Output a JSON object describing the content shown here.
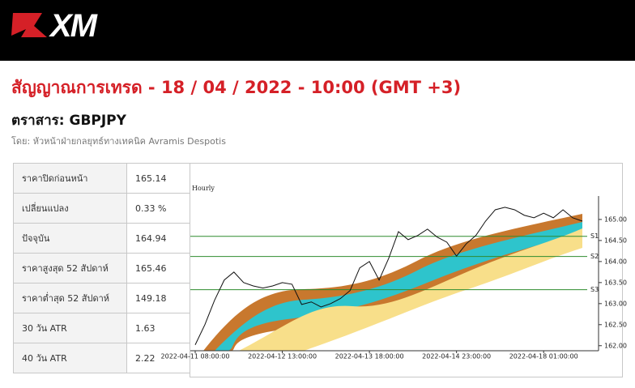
{
  "header": {
    "logo": "XM"
  },
  "title": "สัญญาณการเทรด - 18 / 04 / 2022 - 10:00 (GMT +3)",
  "instrument": "ตราสาร: GBPJPY",
  "author": "โดย: หัวหน้าฝ่ายกลยุทธ์ทางเทคนิค Avramis Despotis",
  "table": {
    "rows": [
      [
        "ราคาปิดก่อนหน้า",
        "165.14"
      ],
      [
        "เปลี่ยนแปลง",
        "0.33 %"
      ],
      [
        "ปัจจุบัน",
        "164.94"
      ],
      [
        "ราคาสูงสุด 52 สัปดาห์",
        "165.46"
      ],
      [
        "ราคาต่ำสุด 52 สัปดาห์",
        "149.18"
      ],
      [
        "30 วัน ATR",
        "1.63"
      ],
      [
        "40 วัน ATR",
        "2.22"
      ]
    ]
  },
  "chart_data": {
    "type": "line",
    "title": "Hourly",
    "categories": [
      "2022-04-11 08:00:00",
      null,
      null,
      null,
      null,
      null,
      null,
      null,
      null,
      "2022-04-12 13:00:00",
      null,
      null,
      null,
      null,
      null,
      null,
      null,
      null,
      "2022-04-13 18:00:00",
      null,
      null,
      null,
      null,
      null,
      null,
      null,
      null,
      "2022-04-14 23:00:00",
      null,
      null,
      null,
      null,
      null,
      null,
      null,
      null,
      "2022-04-18 01:00:00",
      null,
      null,
      null,
      null
    ],
    "series": [
      {
        "color": "#111111",
        "values": [
          162.02,
          162.5,
          163.08,
          163.56,
          163.75,
          163.5,
          163.42,
          163.37,
          163.42,
          163.5,
          163.46,
          162.98,
          163.04,
          162.92,
          163.0,
          163.12,
          163.31,
          163.85,
          164.0,
          163.56,
          164.08,
          164.71,
          164.52,
          164.62,
          164.77,
          164.58,
          164.46,
          164.13,
          164.42,
          164.62,
          164.96,
          165.23,
          165.29,
          165.23,
          165.1,
          165.04,
          165.15,
          165.04,
          165.23,
          165.04,
          164.96
        ]
      }
    ],
    "levels": [
      {
        "name": "S1",
        "value": 164.6
      },
      {
        "name": "S2",
        "value": 164.12
      },
      {
        "name": "S3",
        "value": 163.33
      }
    ],
    "level_color": "#2e8b2e",
    "ylim": [
      161.88,
      166.25
    ],
    "yticks": [
      {
        "value": 162,
        "label": "162.00"
      },
      {
        "value": 162.5,
        "label": "162.50"
      },
      {
        "value": 163,
        "label": "163.00"
      },
      {
        "value": 163.5,
        "label": "163.50"
      },
      {
        "value": 164,
        "label": "164.00"
      },
      {
        "value": 164.5,
        "label": "164.50"
      },
      {
        "value": 165,
        "label": "165.00"
      }
    ]
  }
}
